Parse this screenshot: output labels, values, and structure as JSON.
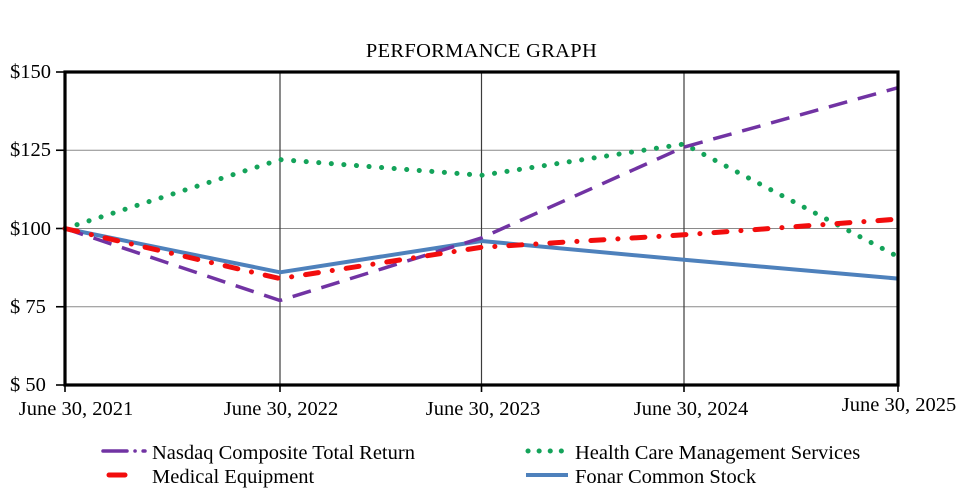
{
  "title": "PERFORMANCE GRAPH",
  "chart_data": {
    "type": "line",
    "title": "PERFORMANCE GRAPH",
    "x_labels": [
      "June 30, 2021",
      "June 30, 2022",
      "June 30, 2023",
      "June 30, 2024",
      "June 30, 2025"
    ],
    "y_tick_labels": [
      "$150",
      "$125",
      "$100",
      "$ 75",
      "$ 50"
    ],
    "y_ticks": [
      150,
      125,
      100,
      75,
      50
    ],
    "ylim": [
      50,
      150
    ],
    "grid": true,
    "legend_position": "bottom, two columns",
    "colors": {
      "nasdaq": "#7133A3",
      "medical_equipment": "#F20D0D",
      "health_care": "#14A35A",
      "fonar": "#4E81BC",
      "gridline_horizontal": "#8A8A8A",
      "gridline_vertical": "#3C3C3C",
      "axis_border": "#000000"
    },
    "series": [
      {
        "name": "Nasdaq Composite Total Return",
        "color": "#7133A3",
        "line_style": "long-dash",
        "values": [
          100,
          77,
          97,
          126,
          145
        ]
      },
      {
        "name": "Medical Equipment",
        "color": "#F20D0D",
        "line_style": "thick-dash-dot",
        "values": [
          100,
          84,
          94,
          98,
          103
        ]
      },
      {
        "name": "Health Care Management Services",
        "color": "#14A35A",
        "line_style": "dotted",
        "values": [
          100,
          122,
          117,
          127,
          91
        ]
      },
      {
        "name": "Fonar Common Stock",
        "color": "#4E81BC",
        "line_style": "solid",
        "values": [
          100,
          86,
          96,
          90,
          84
        ]
      }
    ]
  }
}
